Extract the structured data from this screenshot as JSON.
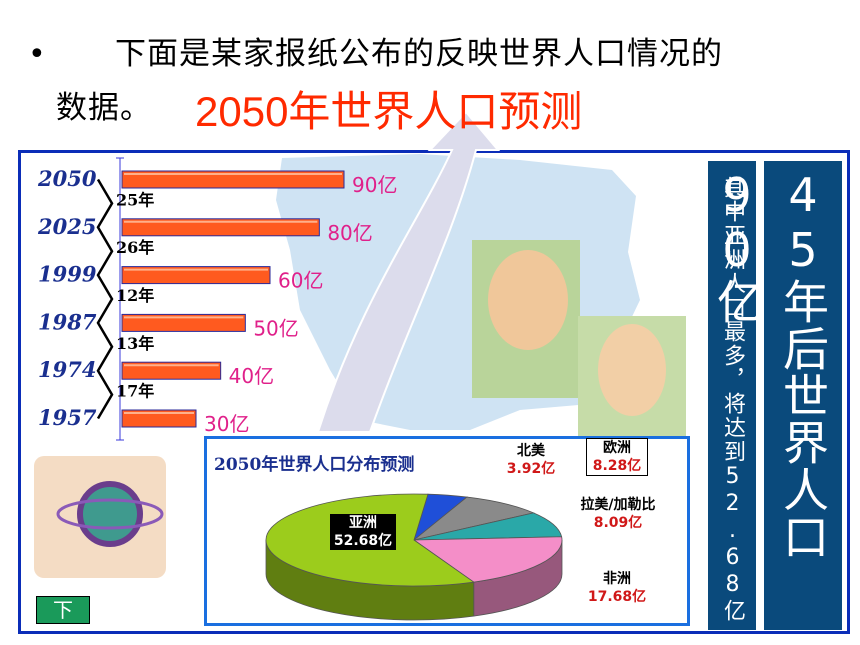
{
  "slide": {
    "bullet": "•",
    "intro_line1": "下面是某家报纸公布的反映世界人口情况的",
    "intro_line2": "数据。",
    "title": "2050年世界人口预测",
    "side_note_small": "其中亚洲人口最多，将达到52.68亿",
    "side_note_large": "45年后世界人口90亿",
    "nav_button": "下"
  },
  "colors": {
    "frame": "#0b2db8",
    "bar_fill": "#ff5a1f",
    "value_label": "#e0208a",
    "panel": "#0a4a7c",
    "title": "#ff2a00"
  },
  "chart_data": [
    {
      "type": "bar",
      "orientation": "horizontal",
      "categories": [
        "2050",
        "2025",
        "1999",
        "1987",
        "1974",
        "1957"
      ],
      "values": [
        90,
        80,
        60,
        50,
        40,
        30
      ],
      "value_labels": [
        "90亿",
        "80亿",
        "60亿",
        "50亿",
        "40亿",
        "30亿"
      ],
      "interval_labels": [
        "25年",
        "26年",
        "12年",
        "13年",
        "17年"
      ],
      "xlim": [
        0,
        90
      ]
    },
    {
      "type": "pie",
      "title": "2050年世界人口分布预测",
      "slices": [
        {
          "name": "亚洲",
          "value": 52.68,
          "label": "52.68亿",
          "color": "#9ccc1c"
        },
        {
          "name": "北美",
          "value": 3.92,
          "label": "3.92亿",
          "color": "#1f4fd8"
        },
        {
          "name": "欧洲",
          "value": 8.28,
          "label": "8.28亿",
          "color": "#8a8a8a"
        },
        {
          "name": "拉美/加勒比",
          "value": 8.09,
          "label": "8.09亿",
          "color": "#2aa8a8"
        },
        {
          "name": "非洲",
          "value": 17.68,
          "label": "17.68亿",
          "color": "#f48ec8"
        }
      ]
    }
  ]
}
